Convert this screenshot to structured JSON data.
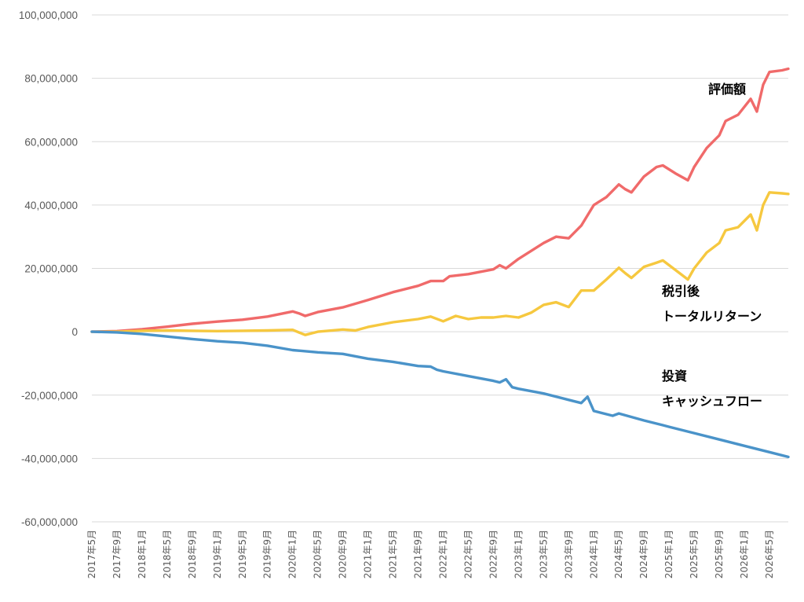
{
  "chart_data": {
    "type": "line",
    "title": "",
    "xlabel": "",
    "ylabel": "",
    "ylim": [
      -60000000,
      100000000
    ],
    "yticks": [
      100000000,
      80000000,
      60000000,
      40000000,
      20000000,
      0,
      -20000000,
      -40000000,
      -60000000
    ],
    "ytick_labels": [
      "100,000,000",
      "80,000,000",
      "60,000,000",
      "40,000,000",
      "20,000,000",
      "0",
      "-20,000,000",
      "-40,000,000",
      "-60,000,000"
    ],
    "x_start": "2017-05",
    "x_end": "2026-08",
    "xtick_labels": [
      "2017年5月",
      "2017年9月",
      "2018年1月",
      "2018年5月",
      "2018年9月",
      "2019年1月",
      "2019年5月",
      "2019年9月",
      "2020年1月",
      "2020年5月",
      "2020年9月",
      "2021年1月",
      "2021年5月",
      "2021年9月",
      "2022年1月",
      "2022年5月",
      "2022年9月",
      "2023年1月",
      "2023年5月",
      "2023年9月",
      "2024年1月",
      "2024年5月",
      "2024年9月",
      "2025年1月",
      "2025年5月",
      "2025年9月",
      "2026年1月",
      "2026年5月"
    ],
    "grid": "horizontal",
    "legend": "none",
    "series": [
      {
        "name": "評価額",
        "color": "#f06a6a",
        "points": [
          [
            "2017-05",
            0
          ],
          [
            "2017-09",
            200000
          ],
          [
            "2018-01",
            800000
          ],
          [
            "2018-05",
            1600000
          ],
          [
            "2018-09",
            2500000
          ],
          [
            "2019-01",
            3200000
          ],
          [
            "2019-05",
            3800000
          ],
          [
            "2019-09",
            4800000
          ],
          [
            "2020-01",
            6400000
          ],
          [
            "2020-02",
            5800000
          ],
          [
            "2020-03",
            5000000
          ],
          [
            "2020-05",
            6200000
          ],
          [
            "2020-09",
            7700000
          ],
          [
            "2021-01",
            10000000
          ],
          [
            "2021-05",
            12500000
          ],
          [
            "2021-09",
            14500000
          ],
          [
            "2021-11",
            16000000
          ],
          [
            "2022-01",
            16000000
          ],
          [
            "2022-02",
            17500000
          ],
          [
            "2022-05",
            18200000
          ],
          [
            "2022-09",
            19700000
          ],
          [
            "2022-10",
            21000000
          ],
          [
            "2022-11",
            20000000
          ],
          [
            "2023-01",
            23000000
          ],
          [
            "2023-05",
            28000000
          ],
          [
            "2023-07",
            30000000
          ],
          [
            "2023-09",
            29500000
          ],
          [
            "2023-11",
            33500000
          ],
          [
            "2024-01",
            40000000
          ],
          [
            "2024-03",
            42500000
          ],
          [
            "2024-05",
            46500000
          ],
          [
            "2024-06",
            45000000
          ],
          [
            "2024-07",
            44000000
          ],
          [
            "2024-09",
            49000000
          ],
          [
            "2024-11",
            52000000
          ],
          [
            "2024-12",
            52500000
          ],
          [
            "2025-02",
            50000000
          ],
          [
            "2025-04",
            47800000
          ],
          [
            "2025-05",
            52000000
          ],
          [
            "2025-07",
            58000000
          ],
          [
            "2025-09",
            62000000
          ],
          [
            "2025-10",
            66500000
          ],
          [
            "2025-12",
            68500000
          ],
          [
            "2026-02",
            73500000
          ],
          [
            "2026-03",
            69500000
          ],
          [
            "2026-04",
            78000000
          ],
          [
            "2026-05",
            82000000
          ],
          [
            "2026-07",
            82500000
          ],
          [
            "2026-08",
            83000000
          ]
        ]
      },
      {
        "name": "税引後\nトータルリターン",
        "color": "#f6c83f",
        "points": [
          [
            "2017-05",
            0
          ],
          [
            "2017-09",
            0
          ],
          [
            "2018-01",
            300000
          ],
          [
            "2018-05",
            400000
          ],
          [
            "2018-09",
            300000
          ],
          [
            "2019-01",
            200000
          ],
          [
            "2019-05",
            300000
          ],
          [
            "2019-09",
            400000
          ],
          [
            "2020-01",
            600000
          ],
          [
            "2020-03",
            -1000000
          ],
          [
            "2020-05",
            0
          ],
          [
            "2020-09",
            700000
          ],
          [
            "2020-11",
            400000
          ],
          [
            "2021-01",
            1500000
          ],
          [
            "2021-05",
            3000000
          ],
          [
            "2021-09",
            4000000
          ],
          [
            "2021-11",
            4800000
          ],
          [
            "2022-01",
            3300000
          ],
          [
            "2022-03",
            5000000
          ],
          [
            "2022-05",
            4000000
          ],
          [
            "2022-07",
            4500000
          ],
          [
            "2022-09",
            4500000
          ],
          [
            "2022-11",
            5000000
          ],
          [
            "2023-01",
            4500000
          ],
          [
            "2023-03",
            6000000
          ],
          [
            "2023-05",
            8500000
          ],
          [
            "2023-07",
            9300000
          ],
          [
            "2023-09",
            7800000
          ],
          [
            "2023-11",
            13000000
          ],
          [
            "2024-01",
            13000000
          ],
          [
            "2024-03",
            16500000
          ],
          [
            "2024-05",
            20200000
          ],
          [
            "2024-06",
            18500000
          ],
          [
            "2024-07",
            17000000
          ],
          [
            "2024-09",
            20500000
          ],
          [
            "2024-11",
            21800000
          ],
          [
            "2024-12",
            22500000
          ],
          [
            "2025-02",
            19500000
          ],
          [
            "2025-04",
            16500000
          ],
          [
            "2025-05",
            20000000
          ],
          [
            "2025-07",
            25000000
          ],
          [
            "2025-09",
            28000000
          ],
          [
            "2025-10",
            32000000
          ],
          [
            "2025-12",
            33000000
          ],
          [
            "2026-02",
            37000000
          ],
          [
            "2026-03",
            32000000
          ],
          [
            "2026-04",
            40000000
          ],
          [
            "2026-05",
            44000000
          ],
          [
            "2026-07",
            43700000
          ],
          [
            "2026-08",
            43500000
          ]
        ]
      },
      {
        "name": "投資\nキャッシュフロー",
        "color": "#4a93c9",
        "points": [
          [
            "2017-05",
            0
          ],
          [
            "2017-09",
            -200000
          ],
          [
            "2018-01",
            -700000
          ],
          [
            "2018-05",
            -1500000
          ],
          [
            "2018-09",
            -2300000
          ],
          [
            "2019-01",
            -3000000
          ],
          [
            "2019-05",
            -3500000
          ],
          [
            "2019-09",
            -4400000
          ],
          [
            "2020-01",
            -5800000
          ],
          [
            "2020-05",
            -6500000
          ],
          [
            "2020-09",
            -7000000
          ],
          [
            "2021-01",
            -8500000
          ],
          [
            "2021-05",
            -9500000
          ],
          [
            "2021-09",
            -10800000
          ],
          [
            "2021-11",
            -11000000
          ],
          [
            "2021-12",
            -12000000
          ],
          [
            "2022-01",
            -12500000
          ],
          [
            "2022-05",
            -14000000
          ],
          [
            "2022-09",
            -15500000
          ],
          [
            "2022-10",
            -16000000
          ],
          [
            "2022-11",
            -15000000
          ],
          [
            "2022-12",
            -17500000
          ],
          [
            "2023-01",
            -18000000
          ],
          [
            "2023-05",
            -19500000
          ],
          [
            "2023-09",
            -21500000
          ],
          [
            "2023-11",
            -22500000
          ],
          [
            "2023-12",
            -20500000
          ],
          [
            "2024-01",
            -25000000
          ],
          [
            "2024-04",
            -26500000
          ],
          [
            "2024-05",
            -25800000
          ],
          [
            "2024-09",
            -28000000
          ],
          [
            "2024-12",
            -29500000
          ],
          [
            "2025-01",
            -30000000
          ],
          [
            "2025-05",
            -32000000
          ],
          [
            "2025-09",
            -34000000
          ],
          [
            "2026-01",
            -36000000
          ],
          [
            "2026-05",
            -38000000
          ],
          [
            "2026-08",
            -39500000
          ]
        ]
      }
    ],
    "annotations": [
      {
        "lines": [
          "評価額"
        ],
        "series": 0
      },
      {
        "lines": [
          "税引後",
          "トータルリターン"
        ],
        "series": 1
      },
      {
        "lines": [
          "投資",
          "キャッシュフロー"
        ],
        "series": 2
      }
    ]
  }
}
